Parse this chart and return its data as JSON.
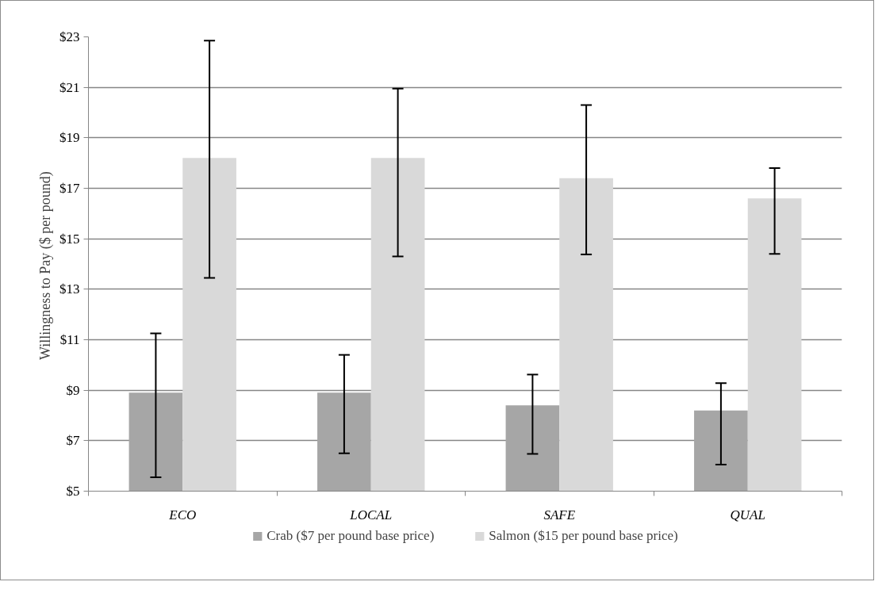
{
  "chart_data": {
    "type": "bar",
    "ylabel": "Willingness to Pay  ($ per pound)",
    "categories": [
      "ECO",
      "LOCAL",
      "SAFE",
      "QUAL"
    ],
    "series": [
      {
        "name": "Crab ($7 per pound base price)",
        "color": "#a6a6a6",
        "values": [
          8.9,
          8.9,
          8.4,
          8.2
        ],
        "errors": [
          [
            5.55,
            11.25
          ],
          [
            6.5,
            10.4
          ],
          [
            6.48,
            9.62
          ],
          [
            6.05,
            9.28
          ]
        ]
      },
      {
        "name": "Salmon ($15 per pound base price)",
        "color": "#d9d9d9",
        "values": [
          18.2,
          18.2,
          17.4,
          16.6
        ],
        "errors": [
          [
            13.45,
            22.85
          ],
          [
            14.3,
            20.95
          ],
          [
            14.38,
            20.3
          ],
          [
            14.4,
            17.8
          ]
        ]
      }
    ],
    "ylim": [
      5,
      23
    ],
    "yticks": [
      {
        "value": 5,
        "label": "$5"
      },
      {
        "value": 7,
        "label": "$7"
      },
      {
        "value": 9,
        "label": "$9"
      },
      {
        "value": 11,
        "label": "$11"
      },
      {
        "value": 13,
        "label": "$13"
      },
      {
        "value": 15,
        "label": "$15"
      },
      {
        "value": 17,
        "label": "$17"
      },
      {
        "value": 19,
        "label": "$19"
      },
      {
        "value": 21,
        "label": "$21"
      },
      {
        "value": 23,
        "label": "$23"
      }
    ],
    "grid": "y",
    "legend": "bottom"
  }
}
